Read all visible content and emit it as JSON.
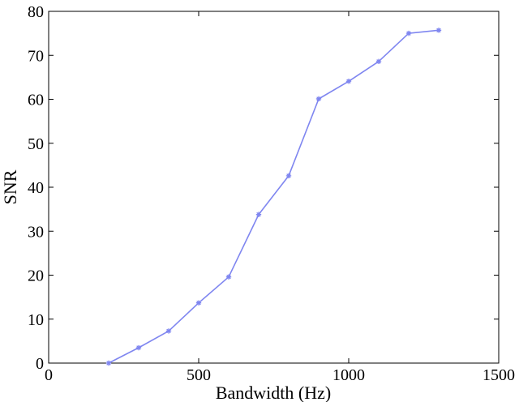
{
  "chart_data": {
    "type": "line",
    "title": "",
    "xlabel": "Bandwidth (Hz)",
    "ylabel": "SNR",
    "xlim": [
      0,
      1500
    ],
    "ylim": [
      0,
      80
    ],
    "xticks": [
      0,
      500,
      1000,
      1500
    ],
    "yticks": [
      0,
      10,
      20,
      30,
      40,
      50,
      60,
      70,
      80
    ],
    "grid": false,
    "legend": "none",
    "series": [
      {
        "color": "#7f86f0",
        "marker": "star",
        "x": [
          200,
          300,
          400,
          500,
          600,
          700,
          800,
          900,
          1000,
          1100,
          1200,
          1300
        ],
        "y": [
          0,
          3.5,
          7.3,
          13.7,
          19.6,
          33.8,
          42.6,
          60.1,
          64.1,
          68.6,
          75.0,
          75.7
        ]
      }
    ]
  }
}
